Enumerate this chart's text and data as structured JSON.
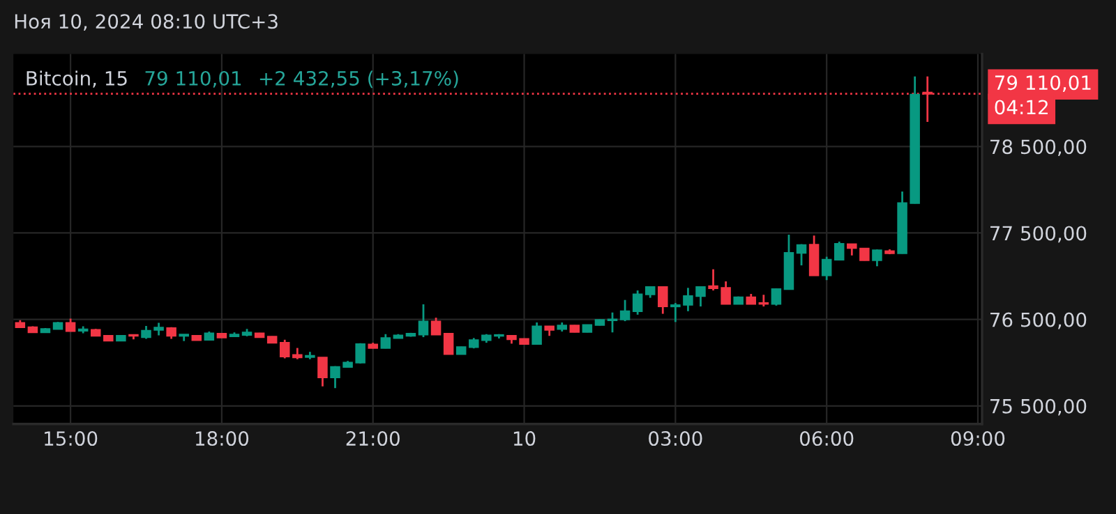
{
  "chart_data": {
    "type": "candlestick",
    "title": "Bitcoin, 15",
    "annotations": [
      "Ноя 10, 2024 08:10 UTC+3",
      "79 110,01",
      "+2 432,55 (+3,17%)",
      "04:12"
    ],
    "x": [
      "2024-11-09T14:00",
      "2024-11-09T14:15",
      "2024-11-09T14:30",
      "2024-11-09T14:45",
      "2024-11-09T15:00",
      "2024-11-09T15:15",
      "2024-11-09T15:30",
      "2024-11-09T15:45",
      "2024-11-09T16:00",
      "2024-11-09T16:15",
      "2024-11-09T16:30",
      "2024-11-09T16:45",
      "2024-11-09T17:00",
      "2024-11-09T17:15",
      "2024-11-09T17:30",
      "2024-11-09T17:45",
      "2024-11-09T18:00",
      "2024-11-09T18:15",
      "2024-11-09T18:30",
      "2024-11-09T18:45",
      "2024-11-09T19:00",
      "2024-11-09T19:15",
      "2024-11-09T19:30",
      "2024-11-09T19:45",
      "2024-11-09T20:00",
      "2024-11-09T20:15",
      "2024-11-09T20:30",
      "2024-11-09T20:45",
      "2024-11-09T21:00",
      "2024-11-09T21:15",
      "2024-11-09T21:30",
      "2024-11-09T21:45",
      "2024-11-09T22:00",
      "2024-11-09T22:15",
      "2024-11-09T22:30",
      "2024-11-09T22:45",
      "2024-11-09T23:00",
      "2024-11-09T23:15",
      "2024-11-09T23:30",
      "2024-11-09T23:45",
      "2024-11-10T00:00",
      "2024-11-10T00:15",
      "2024-11-10T00:30",
      "2024-11-10T00:45",
      "2024-11-10T01:00",
      "2024-11-10T01:15",
      "2024-11-10T01:30",
      "2024-11-10T01:45",
      "2024-11-10T02:00",
      "2024-11-10T02:15",
      "2024-11-10T02:30",
      "2024-11-10T02:45",
      "2024-11-10T03:00",
      "2024-11-10T03:15",
      "2024-11-10T03:30",
      "2024-11-10T03:45",
      "2024-11-10T04:00",
      "2024-11-10T04:15",
      "2024-11-10T04:30",
      "2024-11-10T04:45",
      "2024-11-10T05:00",
      "2024-11-10T05:15",
      "2024-11-10T05:30",
      "2024-11-10T05:45",
      "2024-11-10T06:00",
      "2024-11-10T06:15",
      "2024-11-10T06:30",
      "2024-11-10T06:45",
      "2024-11-10T07:00",
      "2024-11-10T07:15",
      "2024-11-10T07:30",
      "2024-11-10T07:45",
      "2024-11-10T08:00"
    ],
    "ohlc": [
      [
        76460,
        76490,
        76400,
        76410
      ],
      [
        76410,
        76420,
        76350,
        76350
      ],
      [
        76350,
        76400,
        76345,
        76390
      ],
      [
        76390,
        76470,
        76385,
        76460
      ],
      [
        76460,
        76510,
        76360,
        76365
      ],
      [
        76370,
        76420,
        76340,
        76385
      ],
      [
        76380,
        76390,
        76305,
        76310
      ],
      [
        76310,
        76315,
        76250,
        76255
      ],
      [
        76255,
        76315,
        76250,
        76310
      ],
      [
        76320,
        76325,
        76270,
        76310
      ],
      [
        76295,
        76425,
        76275,
        76370
      ],
      [
        76380,
        76460,
        76315,
        76405
      ],
      [
        76400,
        76410,
        76275,
        76310
      ],
      [
        76310,
        76325,
        76250,
        76325
      ],
      [
        76310,
        76315,
        76260,
        76260
      ],
      [
        76265,
        76360,
        76260,
        76340
      ],
      [
        76335,
        76340,
        76290,
        76290
      ],
      [
        76305,
        76350,
        76300,
        76325
      ],
      [
        76320,
        76390,
        76305,
        76350
      ],
      [
        76340,
        76345,
        76295,
        76295
      ],
      [
        76300,
        76305,
        76230,
        76230
      ],
      [
        76230,
        76265,
        76050,
        76070
      ],
      [
        76090,
        76170,
        76040,
        76060
      ],
      [
        76065,
        76125,
        76040,
        76080
      ],
      [
        76060,
        76060,
        75725,
        75830
      ],
      [
        75830,
        75960,
        75705,
        75950
      ],
      [
        75950,
        76020,
        75945,
        76000
      ],
      [
        76000,
        76225,
        75990,
        76215
      ],
      [
        76210,
        76230,
        76165,
        76170
      ],
      [
        76170,
        76330,
        76165,
        76285
      ],
      [
        76285,
        76330,
        76280,
        76315
      ],
      [
        76310,
        76345,
        76300,
        76335
      ],
      [
        76325,
        76675,
        76295,
        76475
      ],
      [
        76475,
        76520,
        76320,
        76325
      ],
      [
        76335,
        76340,
        76095,
        76100
      ],
      [
        76100,
        76185,
        76095,
        76180
      ],
      [
        76180,
        76285,
        76165,
        76260
      ],
      [
        76260,
        76330,
        76230,
        76315
      ],
      [
        76310,
        76330,
        76280,
        76320
      ],
      [
        76310,
        76315,
        76220,
        76270
      ],
      [
        76275,
        76280,
        76210,
        76215
      ],
      [
        76215,
        76465,
        76210,
        76420
      ],
      [
        76420,
        76425,
        76310,
        76380
      ],
      [
        76390,
        76465,
        76360,
        76430
      ],
      [
        76430,
        76435,
        76350,
        76355
      ],
      [
        76355,
        76440,
        76350,
        76435
      ],
      [
        76435,
        76500,
        76430,
        76495
      ],
      [
        76490,
        76580,
        76350,
        76500
      ],
      [
        76500,
        76725,
        76480,
        76595
      ],
      [
        76595,
        76835,
        76555,
        76790
      ],
      [
        76790,
        76880,
        76750,
        76875
      ],
      [
        76875,
        76880,
        76565,
        76650
      ],
      [
        76650,
        76690,
        76470,
        76665
      ],
      [
        76670,
        76865,
        76595,
        76770
      ],
      [
        76770,
        76880,
        76650,
        76875
      ],
      [
        76885,
        77080,
        76835,
        76860
      ],
      [
        76865,
        76940,
        76675,
        76680
      ],
      [
        76680,
        76765,
        76675,
        76755
      ],
      [
        76755,
        76795,
        76675,
        76680
      ],
      [
        76690,
        76785,
        76650,
        76680
      ],
      [
        76680,
        76860,
        76660,
        76850
      ],
      [
        76850,
        77480,
        76850,
        77270
      ],
      [
        77270,
        77370,
        77125,
        77360
      ],
      [
        77365,
        77470,
        77005,
        77010
      ],
      [
        77010,
        77225,
        76955,
        77190
      ],
      [
        77190,
        77400,
        77190,
        77375
      ],
      [
        77370,
        77375,
        77240,
        77325
      ],
      [
        77320,
        77325,
        77180,
        77185
      ],
      [
        77185,
        77310,
        77115,
        77300
      ],
      [
        77290,
        77310,
        77255,
        77265
      ],
      [
        77265,
        77980,
        77260,
        77845
      ],
      [
        77845,
        79310,
        77840,
        79100
      ],
      [
        79125,
        79310,
        78785,
        79110.01
      ]
    ],
    "colors": [
      "#f23645",
      "#f23645",
      "#089981",
      "#089981",
      "#f23645",
      "#089981",
      "#f23645",
      "#f23645",
      "#089981",
      "#f23645",
      "#089981",
      "#089981",
      "#f23645",
      "#089981",
      "#f23645",
      "#089981",
      "#f23645",
      "#089981",
      "#089981",
      "#f23645",
      "#f23645",
      "#f23645",
      "#f23645",
      "#089981",
      "#f23645",
      "#089981",
      "#089981",
      "#089981",
      "#f23645",
      "#089981",
      "#089981",
      "#089981",
      "#089981",
      "#f23645",
      "#f23645",
      "#089981",
      "#089981",
      "#089981",
      "#089981",
      "#f23645",
      "#f23645",
      "#089981",
      "#f23645",
      "#089981",
      "#f23645",
      "#089981",
      "#089981",
      "#089981",
      "#089981",
      "#089981",
      "#089981",
      "#f23645",
      "#089981",
      "#089981",
      "#089981",
      "#f23645",
      "#f23645",
      "#089981",
      "#f23645",
      "#f23645",
      "#089981",
      "#089981",
      "#089981",
      "#f23645",
      "#089981",
      "#089981",
      "#f23645",
      "#f23645",
      "#089981",
      "#f23645",
      "#089981",
      "#089981",
      "#f23645"
    ],
    "xlim": [
      "2024-11-09T13:52",
      "2024-11-10T09:05"
    ],
    "xticks": [
      {
        "value": "2024-11-09T15:00",
        "label": "15:00"
      },
      {
        "value": "2024-11-09T18:00",
        "label": "18:00"
      },
      {
        "value": "2024-11-09T21:00",
        "label": "21:00"
      },
      {
        "value": "2024-11-10T00:00",
        "label": "10"
      },
      {
        "value": "2024-11-10T03:00",
        "label": "03:00"
      },
      {
        "value": "2024-11-10T06:00",
        "label": "06:00"
      },
      {
        "value": "2024-11-10T09:00",
        "label": "09:00"
      }
    ],
    "ylim": [
      75290,
      79570
    ],
    "yticks": [
      {
        "value": 75500,
        "label": "75 500,00"
      },
      {
        "value": 76500,
        "label": "76 500,00"
      },
      {
        "value": 77500,
        "label": "77 500,00"
      },
      {
        "value": 78500,
        "label": "78 500,00"
      }
    ],
    "ref_lines": [
      {
        "axis": "y",
        "value": 79110.01,
        "label": "79 110,01",
        "color": "#f23645",
        "line_style": "dotted"
      }
    ],
    "grid": true
  }
}
